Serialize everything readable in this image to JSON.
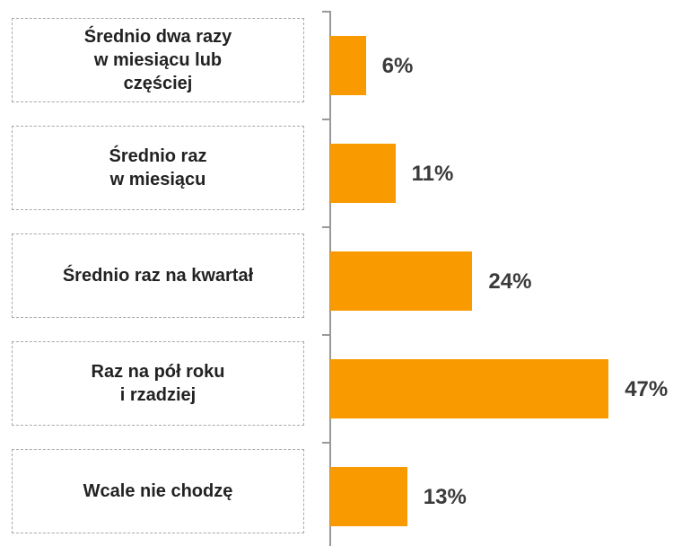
{
  "chart_data": {
    "type": "bar",
    "orientation": "horizontal",
    "categories": [
      "Średnio dwa razy\nw miesiącu lub\nczęściej",
      "Średnio raz\nw miesiącu",
      "Średnio raz na kwartał",
      "Raz na pół roku\ni rzadziej",
      "Wcale nie chodzę"
    ],
    "values": [
      6,
      11,
      24,
      47,
      13
    ],
    "value_labels": [
      "6%",
      "11%",
      "24%",
      "47%",
      "13%"
    ],
    "color": "#f99b00"
  }
}
